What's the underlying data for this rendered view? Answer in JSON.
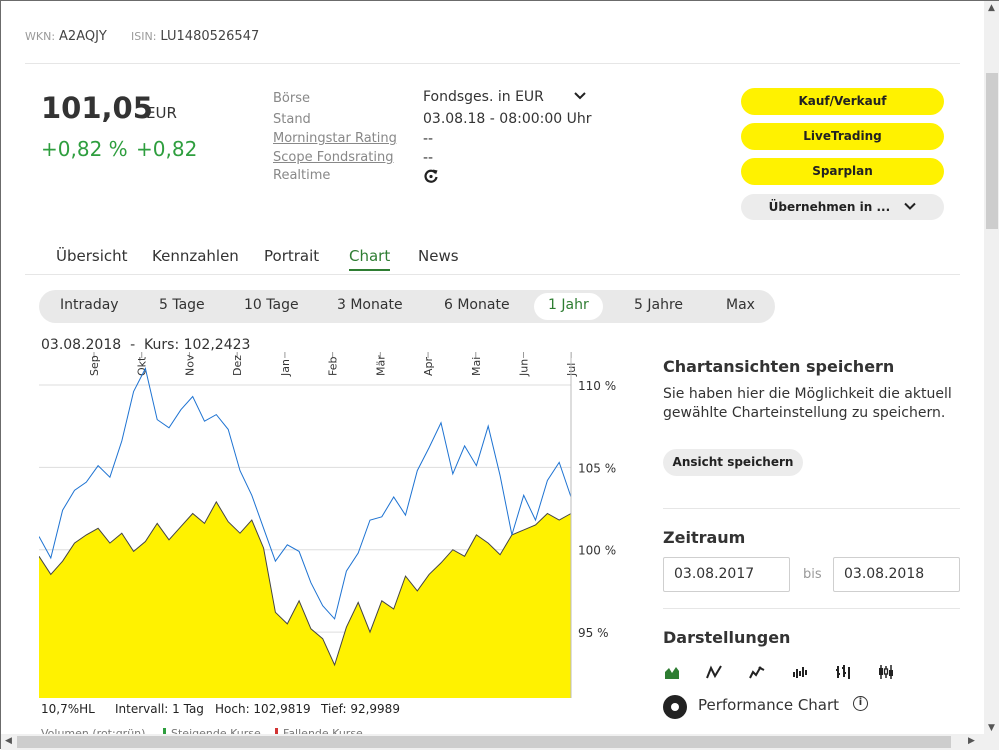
{
  "ids": {
    "wkn_label": "WKN:",
    "wkn": "A2AQJY",
    "isin_label": "ISIN:",
    "isin": "LU1480526547"
  },
  "quote": {
    "price": "101,05",
    "currency": "EUR",
    "change_pct": "+0,82 %",
    "change_abs": "+0,82"
  },
  "info": {
    "boerse_label": "Börse",
    "boerse_value": "Fondsges. in EUR",
    "stand_label": "Stand",
    "stand_value": "03.08.18 - 08:00:00 Uhr",
    "morningstar_label": "Morningstar Rating",
    "morningstar_value": "--",
    "scope_label": "Scope Fondsrating",
    "scope_value": "--",
    "realtime_label": "Realtime"
  },
  "actions": {
    "buy_sell": "Kauf/Verkauf",
    "live": "LiveTrading",
    "sparplan": "Sparplan",
    "uebernehmen": "Übernehmen in ..."
  },
  "tabs": [
    "Übersicht",
    "Kennzahlen",
    "Portrait",
    "Chart",
    "News"
  ],
  "periods": [
    "Intraday",
    "5 Tage",
    "10 Tage",
    "3 Monate",
    "6 Monate",
    "1 Jahr",
    "5 Jahre",
    "Max"
  ],
  "chart_header": {
    "date": "03.08.2018",
    "sep": "-",
    "kurs": "Kurs: 102,2423"
  },
  "stats": {
    "hl": "10,7%HL",
    "intervall": "Intervall: 1 Tag",
    "hoch": "Hoch: 102,9819",
    "tief": "Tief: 92,9989"
  },
  "legend": {
    "volumen": "Volumen (rot:grün)",
    "steigende": "Steigende Kurse",
    "fallende": "Fallende Kurse"
  },
  "right": {
    "ansichten_title": "Chartansichten speichern",
    "ansichten_text": "Sie haben hier die Möglichkeit die aktuell gewählte Charteinstellung zu speichern.",
    "ansicht_btn": "Ansicht speichern",
    "zeitraum_title": "Zeitraum",
    "from": "03.08.2017",
    "bis": "bis",
    "to": "03.08.2018",
    "darstellungen_title": "Darstellungen",
    "performance": "Performance Chart"
  },
  "colors": {
    "accent_green": "#2e7d32",
    "positive": "#2e9e3e",
    "button_yellow": "#fff200",
    "benchmark_blue": "#1e73d2"
  },
  "chart_data": {
    "type": "area",
    "x_ticks": [
      "Sep",
      "Okt",
      "Nov",
      "Dez",
      "Jan",
      "Feb",
      "Mär",
      "Apr",
      "Mai",
      "Jun",
      "Jul"
    ],
    "y_ticks": [
      "95 %",
      "100 %",
      "105 %",
      "110 %"
    ],
    "ylim": [
      91,
      112
    ],
    "series": [
      {
        "values": [
          99.6,
          98.5,
          99.3,
          100.4,
          100.9,
          101.3,
          100.4,
          101.0,
          99.9,
          100.5,
          101.6,
          100.6,
          101.4,
          102.2,
          101.6,
          102.9,
          101.7,
          101.0,
          101.8,
          100.1,
          96.2,
          95.5,
          96.9,
          95.2,
          94.6,
          93.0,
          95.3,
          96.8,
          95.0,
          96.9,
          96.4,
          98.4,
          97.5,
          98.5,
          99.2,
          100.0,
          99.6,
          100.9,
          100.4,
          99.7,
          100.9,
          101.2,
          101.5,
          102.2,
          101.8,
          102.2
        ]
      },
      {
        "values": [
          100.8,
          99.5,
          102.4,
          103.6,
          104.1,
          105.1,
          104.4,
          106.6,
          109.6,
          111.0,
          107.9,
          107.4,
          108.5,
          109.3,
          107.8,
          108.2,
          107.3,
          104.8,
          103.3,
          101.3,
          99.3,
          100.3,
          99.9,
          98.0,
          96.6,
          95.8,
          98.7,
          99.8,
          101.8,
          102.0,
          103.2,
          102.1,
          104.8,
          106.2,
          107.7,
          104.6,
          106.3,
          105.1,
          107.5,
          104.5,
          100.9,
          103.3,
          101.8,
          104.2,
          105.3,
          103.2
        ]
      }
    ]
  }
}
